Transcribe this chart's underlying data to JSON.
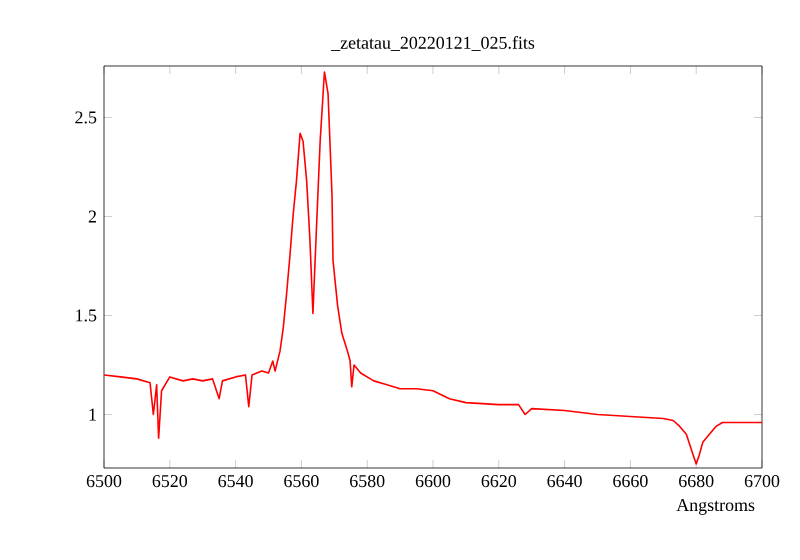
{
  "chart_data": {
    "type": "line",
    "title": "_zetatau_20220121_025.fits",
    "xlabel": "Angstroms",
    "color": "#ff0000",
    "line_style": "solid",
    "x": [
      6500,
      6505,
      6510,
      6514,
      6515,
      6516,
      6516.6,
      6517.5,
      6520,
      6524,
      6527,
      6530,
      6533,
      6535,
      6536,
      6540,
      6543,
      6544,
      6545,
      6548,
      6550,
      6551.3,
      6552,
      6553.5,
      6554.5,
      6555.5,
      6556.5,
      6557.5,
      6558.5,
      6559.6,
      6560.5,
      6561.6,
      6562.6,
      6563.5,
      6564.6,
      6565.7,
      6567,
      6568.1,
      6569.3,
      6569.6,
      6571,
      6572.3,
      6574,
      6574.8,
      6575.3,
      6576,
      6578,
      6582,
      6586,
      6590,
      6595,
      6600,
      6605,
      6610,
      6620,
      6626,
      6628,
      6630,
      6640,
      6650,
      6660,
      6670,
      6673,
      6675,
      6677,
      6678,
      6679,
      6680,
      6681,
      6682,
      6684,
      6686,
      6688,
      6692,
      6700
    ],
    "values": [
      1.2,
      1.19,
      1.18,
      1.16,
      1.0,
      1.15,
      0.88,
      1.12,
      1.19,
      1.17,
      1.18,
      1.17,
      1.18,
      1.08,
      1.17,
      1.19,
      1.2,
      1.04,
      1.2,
      1.22,
      1.21,
      1.27,
      1.22,
      1.32,
      1.44,
      1.61,
      1.8,
      2.01,
      2.18,
      2.42,
      2.38,
      2.18,
      1.88,
      1.51,
      1.95,
      2.38,
      2.73,
      2.62,
      2.11,
      1.78,
      1.55,
      1.41,
      1.32,
      1.27,
      1.14,
      1.25,
      1.21,
      1.17,
      1.15,
      1.13,
      1.13,
      1.12,
      1.08,
      1.06,
      1.05,
      1.05,
      1.0,
      1.03,
      1.02,
      1.0,
      0.99,
      0.98,
      0.97,
      0.94,
      0.9,
      0.85,
      0.8,
      0.75,
      0.8,
      0.86,
      0.9,
      0.94,
      0.96,
      0.96,
      0.96
    ],
    "xlim": [
      6500,
      6700
    ],
    "ylim": [
      0.73,
      2.76
    ],
    "xticks": [
      6500,
      6520,
      6540,
      6560,
      6580,
      6600,
      6620,
      6640,
      6660,
      6680,
      6700
    ],
    "yticks": [
      1,
      1.5,
      2,
      2.5
    ]
  }
}
